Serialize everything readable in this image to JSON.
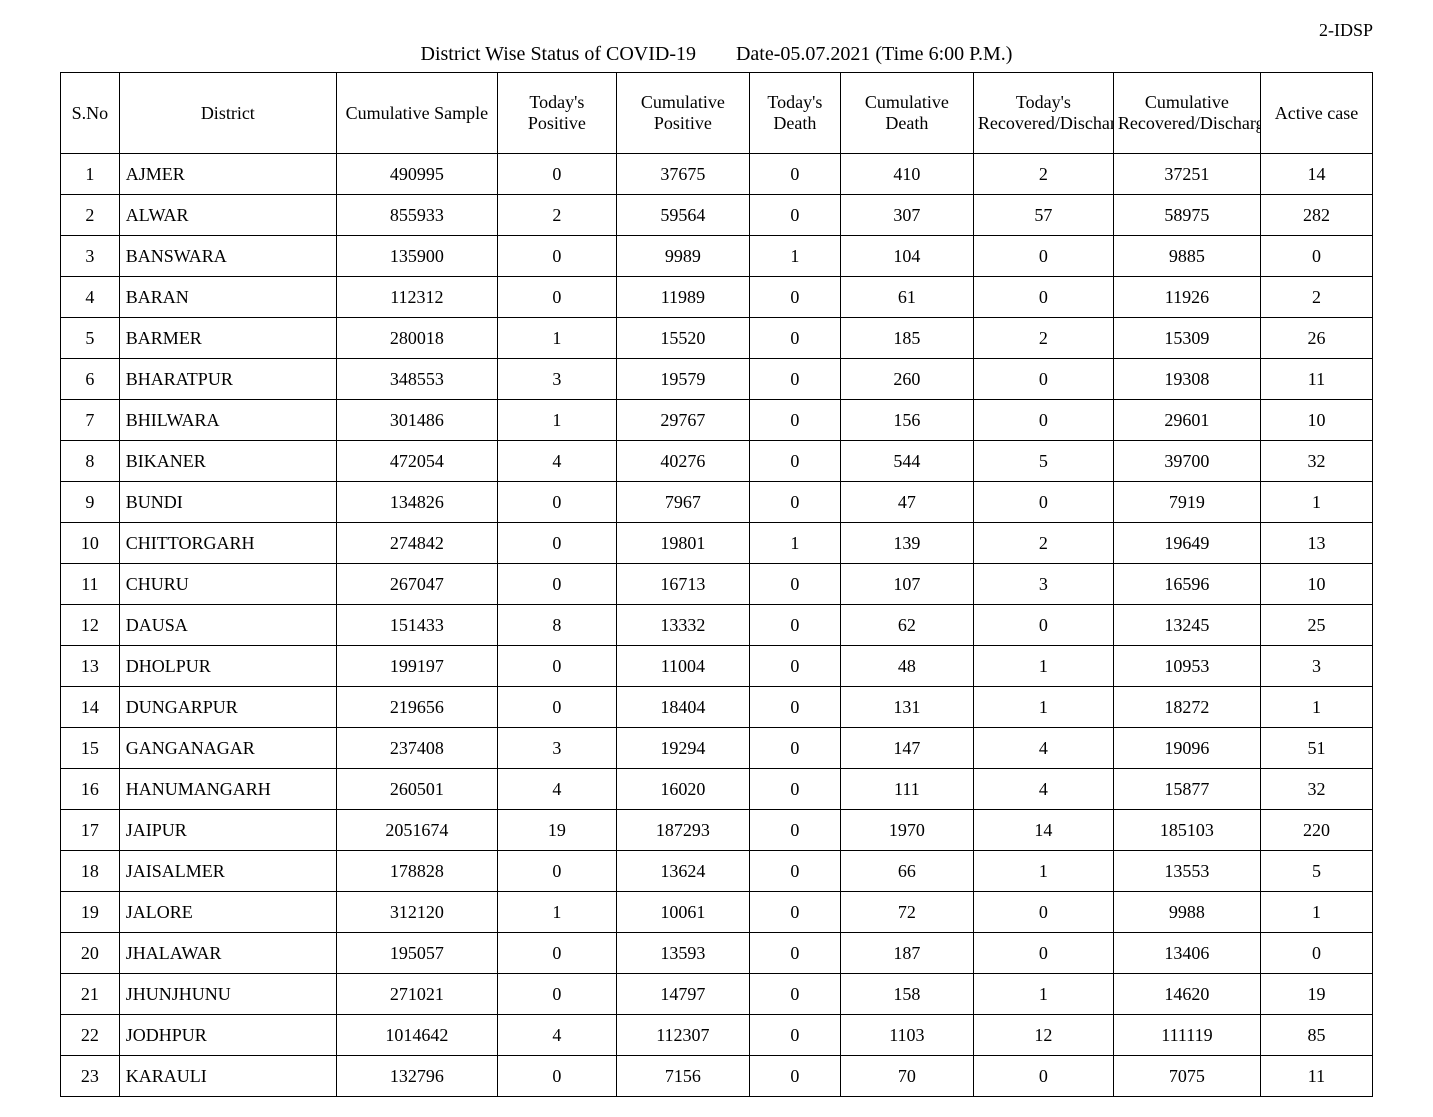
{
  "header": {
    "corner": "2-IDSP",
    "title_left": "District Wise Status of  COVID-19",
    "title_right": "Date-05.07.2021 (Time 6:00 P.M.)"
  },
  "table": {
    "columns": [
      "S.No",
      "District",
      "Cumulative Sample",
      "Today's Positive",
      "Cumulative Positive",
      "Today's Death",
      "Cumulative Death",
      "Today's Recovered/Discharged",
      "Cumulative Recovered/Discharged",
      "Active case"
    ],
    "rows": [
      [
        "1",
        "AJMER",
        "490995",
        "0",
        "37675",
        "0",
        "410",
        "2",
        "37251",
        "14"
      ],
      [
        "2",
        "ALWAR",
        "855933",
        "2",
        "59564",
        "0",
        "307",
        "57",
        "58975",
        "282"
      ],
      [
        "3",
        "BANSWARA",
        "135900",
        "0",
        "9989",
        "1",
        "104",
        "0",
        "9885",
        "0"
      ],
      [
        "4",
        "BARAN",
        "112312",
        "0",
        "11989",
        "0",
        "61",
        "0",
        "11926",
        "2"
      ],
      [
        "5",
        "BARMER",
        "280018",
        "1",
        "15520",
        "0",
        "185",
        "2",
        "15309",
        "26"
      ],
      [
        "6",
        "BHARATPUR",
        "348553",
        "3",
        "19579",
        "0",
        "260",
        "0",
        "19308",
        "11"
      ],
      [
        "7",
        "BHILWARA",
        "301486",
        "1",
        "29767",
        "0",
        "156",
        "0",
        "29601",
        "10"
      ],
      [
        "8",
        "BIKANER",
        "472054",
        "4",
        "40276",
        "0",
        "544",
        "5",
        "39700",
        "32"
      ],
      [
        "9",
        "BUNDI",
        "134826",
        "0",
        "7967",
        "0",
        "47",
        "0",
        "7919",
        "1"
      ],
      [
        "10",
        "CHITTORGARH",
        "274842",
        "0",
        "19801",
        "1",
        "139",
        "2",
        "19649",
        "13"
      ],
      [
        "11",
        "CHURU",
        "267047",
        "0",
        "16713",
        "0",
        "107",
        "3",
        "16596",
        "10"
      ],
      [
        "12",
        "DAUSA",
        "151433",
        "8",
        "13332",
        "0",
        "62",
        "0",
        "13245",
        "25"
      ],
      [
        "13",
        "DHOLPUR",
        "199197",
        "0",
        "11004",
        "0",
        "48",
        "1",
        "10953",
        "3"
      ],
      [
        "14",
        "DUNGARPUR",
        "219656",
        "0",
        "18404",
        "0",
        "131",
        "1",
        "18272",
        "1"
      ],
      [
        "15",
        "GANGANAGAR",
        "237408",
        "3",
        "19294",
        "0",
        "147",
        "4",
        "19096",
        "51"
      ],
      [
        "16",
        "HANUMANGARH",
        "260501",
        "4",
        "16020",
        "0",
        "111",
        "4",
        "15877",
        "32"
      ],
      [
        "17",
        "JAIPUR",
        "2051674",
        "19",
        "187293",
        "0",
        "1970",
        "14",
        "185103",
        "220"
      ],
      [
        "18",
        "JAISALMER",
        "178828",
        "0",
        "13624",
        "0",
        "66",
        "1",
        "13553",
        "5"
      ],
      [
        "19",
        "JALORE",
        "312120",
        "1",
        "10061",
        "0",
        "72",
        "0",
        "9988",
        "1"
      ],
      [
        "20",
        "JHALAWAR",
        "195057",
        "0",
        "13593",
        "0",
        "187",
        "0",
        "13406",
        "0"
      ],
      [
        "21",
        "JHUNJHUNU",
        "271021",
        "0",
        "14797",
        "0",
        "158",
        "1",
        "14620",
        "19"
      ],
      [
        "22",
        "JODHPUR",
        "1014642",
        "4",
        "112307",
        "0",
        "1103",
        "12",
        "111119",
        "85"
      ],
      [
        "23",
        "KARAULI",
        "132796",
        "0",
        "7156",
        "0",
        "70",
        "0",
        "7075",
        "11"
      ]
    ]
  }
}
